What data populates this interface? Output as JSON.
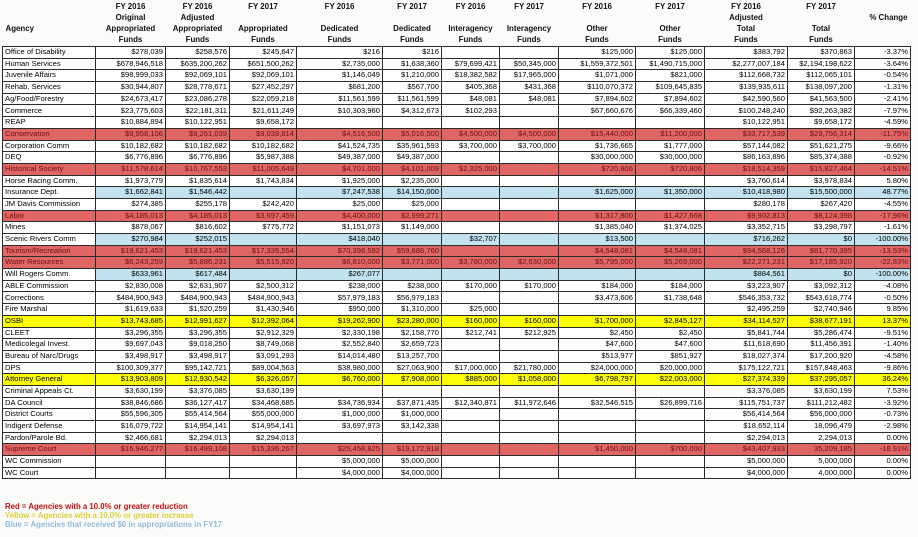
{
  "table": {
    "columns": [
      {
        "id": "agency",
        "lines": [
          "",
          "",
          "Agency",
          ""
        ]
      },
      {
        "id": "fy16-original-appropriated",
        "lines": [
          "FY 2016",
          "Original",
          "Appropriated",
          "Funds"
        ]
      },
      {
        "id": "fy16-adjusted-appropriated",
        "lines": [
          "FY 2016",
          "Adjusted",
          "Appropriated",
          "Funds"
        ]
      },
      {
        "id": "fy17-appropriated",
        "lines": [
          "FY 2017",
          "",
          "Appropriated",
          "Funds"
        ]
      },
      {
        "id": "fy16-dedicated",
        "lines": [
          "FY 2016",
          "",
          "Dedicated",
          "Funds"
        ]
      },
      {
        "id": "fy17-dedicated",
        "lines": [
          "FY 2017",
          "",
          "Dedicated",
          "Funds"
        ]
      },
      {
        "id": "fy16-interagency",
        "lines": [
          "FY 2016",
          "",
          "Interagency",
          "Funds"
        ]
      },
      {
        "id": "fy17-interagency",
        "lines": [
          "FY 2017",
          "",
          "Interagency",
          "Funds"
        ]
      },
      {
        "id": "fy16-other",
        "lines": [
          "FY 2016",
          "",
          "Other",
          "Funds"
        ]
      },
      {
        "id": "fy17-other",
        "lines": [
          "FY 2017",
          "",
          "Other",
          "Funds"
        ]
      },
      {
        "id": "fy16-adjusted-total",
        "lines": [
          "FY 2016",
          "Adjusted",
          "Total",
          "Funds"
        ]
      },
      {
        "id": "fy17-total",
        "lines": [
          "FY 2017",
          "",
          "Total",
          "Funds"
        ]
      },
      {
        "id": "percent-change",
        "lines": [
          "",
          "% Change",
          "",
          ""
        ]
      }
    ],
    "rows": [
      {
        "agency": "Office of Disability",
        "highlight": "none",
        "values": [
          "$278,039",
          "$258,576",
          "$245,647",
          "$216",
          "$216",
          "",
          "",
          "$125,000",
          "$125,000",
          "$383,792",
          "$370,863",
          "-3.37%"
        ]
      },
      {
        "agency": "Human Services",
        "highlight": "none",
        "values": [
          "$678,946,518",
          "$635,200,262",
          "$651,500,262",
          "$2,735,000",
          "$1,638,360",
          "$79,699,421",
          "$50,345,000",
          "$1,559,372,501",
          "$1,490,715,000",
          "$2,277,007,184",
          "$2,194,198,622",
          "-3.64%"
        ]
      },
      {
        "agency": "Juvenile Affairs",
        "highlight": "none",
        "values": [
          "$98,999,033",
          "$92,069,101",
          "$92,069,101",
          "$1,146,049",
          "$1,210,000",
          "$18,382,582",
          "$17,965,000",
          "$1,071,000",
          "$821,000",
          "$112,668,732",
          "$112,065,101",
          "-0.54%"
        ]
      },
      {
        "agency": "Rehab. Services",
        "highlight": "none",
        "values": [
          "$30,944,807",
          "$28,778,671",
          "$27,452,297",
          "$681,200",
          "$567,700",
          "$405,368",
          "$431,368",
          "$110,070,372",
          "$109,645,835",
          "$139,935,611",
          "$138,097,200",
          "-1.31%"
        ]
      },
      {
        "agency": "Ag/Food/Forestry",
        "highlight": "none",
        "values": [
          "$24,673,417",
          "$23,086,278",
          "$22,059,218",
          "$11,561,599",
          "$11,561,599",
          "$48,081",
          "$48,081",
          "$7,894,602",
          "$7,894,602",
          "$42,590,560",
          "$41,563,500",
          "-2.41%"
        ]
      },
      {
        "agency": "Commerce",
        "highlight": "none",
        "values": [
          "$23,775,603",
          "$22,181,311",
          "$21,611,249",
          "$10,303,960",
          "$4,312,673",
          "$102,293",
          "",
          "$67,660,676",
          "$66,339,460",
          "$100,248,240",
          "$92,263,382",
          "-7.97%"
        ]
      },
      {
        "agency": "REAP",
        "highlight": "none",
        "values": [
          "$10,884,894",
          "$10,122,951",
          "$9,658,172",
          "",
          "",
          "",
          "",
          "",
          "",
          "$10,122,951",
          "$9,658,172",
          "-4.59%"
        ]
      },
      {
        "agency": "Conservation",
        "highlight": "red",
        "values": [
          "$9,958,106",
          "$9,261,039",
          "$9,039,814",
          "$4,516,500",
          "$5,016,500",
          "$4,500,000",
          "$4,500,000",
          "$15,440,000",
          "$11,200,000",
          "$33,717,539",
          "$29,756,314",
          "-11.75%"
        ]
      },
      {
        "agency": "Corporation Comm",
        "highlight": "none",
        "values": [
          "$10,182,682",
          "$10,182,682",
          "$10,182,682",
          "$41,524,735",
          "$35,961,593",
          "$3,700,000",
          "$3,700,000",
          "$1,736,665",
          "$1,777,000",
          "$57,144,082",
          "$51,621,275",
          "-9.66%"
        ]
      },
      {
        "agency": "DEQ",
        "highlight": "none",
        "values": [
          "$6,776,896",
          "$6,776,896",
          "$5,987,388",
          "$49,387,000",
          "$49,387,000",
          "",
          "",
          "$30,000,000",
          "$30,000,000",
          "$86,163,896",
          "$85,374,388",
          "-0.92%"
        ]
      },
      {
        "agency": "Historical Society",
        "highlight": "red",
        "values": [
          "$11,578,614",
          "$10,767,553",
          "$11,005,649",
          "$4,701,000",
          "$4,101,009",
          "$2,325,000",
          "",
          "$720,806",
          "$720,806",
          "$18,514,359",
          "$15,827,464",
          "-14.51%"
        ]
      },
      {
        "agency": "Horse Racing Comm.",
        "highlight": "none",
        "values": [
          "$1,973,779",
          "$1,835,614",
          "$1,743,834",
          "$1,925,000",
          "$2,235,000",
          "",
          "",
          "",
          "",
          "$3,760,614",
          "$3,978,834",
          "5.80%"
        ]
      },
      {
        "agency": "Insurance Dept.",
        "highlight": "blue",
        "values": [
          "$1,662,841",
          "$1,546,442",
          "",
          "$7,247,538",
          "$14,150,000",
          "",
          "",
          "$1,625,000",
          "$1,350,000",
          "$10,418,980",
          "$15,500,000",
          "48.77%"
        ]
      },
      {
        "agency": "JM Davis Commission",
        "highlight": "none",
        "values": [
          "$274,385",
          "$255,178",
          "$242,420",
          "$25,000",
          "$25,000",
          "",
          "",
          "",
          "",
          "$280,178",
          "$267,420",
          "-4.55%"
        ]
      },
      {
        "agency": "Labor",
        "highlight": "red",
        "values": [
          "$4,185,013",
          "$4,185,013",
          "$3,697,459",
          "$4,400,000",
          "$2,999,271",
          "",
          "",
          "$1,317,800",
          "$1,427,668",
          "$9,902,813",
          "$8,124,398",
          "-17.96%"
        ]
      },
      {
        "agency": "Mines",
        "highlight": "none",
        "values": [
          "$878,067",
          "$816,602",
          "$775,772",
          "$1,151,073",
          "$1,149,000",
          "",
          "",
          "$1,385,040",
          "$1,374,025",
          "$3,352,715",
          "$3,298,797",
          "-1.61%"
        ]
      },
      {
        "agency": "Scenic Rivers Comm",
        "highlight": "blue",
        "values": [
          "$270,984",
          "$252,015",
          "",
          "$418,040",
          "",
          "$32,707",
          "",
          "$13,500",
          "",
          "$716,262",
          "$0",
          "-100.00%"
        ]
      },
      {
        "agency": "Tourism/Recreation",
        "highlight": "red",
        "values": [
          "$19,621,453",
          "$19,621,453",
          "$17,335,554",
          "$70,398,592",
          "$59,886,760",
          "",
          "",
          "$4,548,081",
          "$4,548,081",
          "$94,568,126",
          "$81,770,395",
          "-13.53%"
        ]
      },
      {
        "agency": "Water Resources",
        "highlight": "red",
        "values": [
          "$6,243,259",
          "$5,886,231",
          "$5,515,920",
          "$6,810,000",
          "$3,771,000",
          "$3,780,000",
          "$2,630,000",
          "$5,795,000",
          "$5,269,000",
          "$22,271,231",
          "$17,185,920",
          "-22.83%"
        ]
      },
      {
        "agency": "Will Rogers Comm.",
        "highlight": "blue",
        "values": [
          "$633,961",
          "$617,484",
          "",
          "$267,077",
          "",
          "",
          "",
          "",
          "",
          "$884,561",
          "$0",
          "-100.00%"
        ]
      },
      {
        "agency": "ABLE Commission",
        "highlight": "none",
        "values": [
          "$2,830,008",
          "$2,631,907",
          "$2,500,312",
          "$238,000",
          "$238,000",
          "$170,000",
          "$170,000",
          "$184,000",
          "$184,000",
          "$3,223,907",
          "$3,092,312",
          "-4.08%"
        ]
      },
      {
        "agency": "Corrections",
        "highlight": "none",
        "values": [
          "$484,900,943",
          "$484,900,943",
          "$484,900,943",
          "$57,979,183",
          "$56,979,183",
          "",
          "",
          "$3,473,606",
          "$1,738,648",
          "$546,353,732",
          "$543,618,774",
          "-0.50%"
        ]
      },
      {
        "agency": "Fire Marshal",
        "highlight": "none",
        "values": [
          "$1,619,633",
          "$1,520,259",
          "$1,430,946",
          "$950,000",
          "$1,310,000",
          "$25,000",
          "",
          "",
          "",
          "$2,495,259",
          "$2,740,946",
          "9.85%"
        ]
      },
      {
        "agency": "OSBI",
        "highlight": "yellow",
        "values": [
          "$13,743,685",
          "$12,991,627",
          "$12,392,064",
          "$19,262,900",
          "$23,280,000",
          "$160,000",
          "$160,000",
          "$1,700,000",
          "$2,845,127",
          "$34,114,527",
          "$38,677,191",
          "13.37%"
        ]
      },
      {
        "agency": "CLEET",
        "highlight": "none",
        "values": [
          "$3,296,355",
          "$3,296,355",
          "$2,912,329",
          "$2,330,198",
          "$2,158,770",
          "$212,741",
          "$212,925",
          "$2,450",
          "$2,450",
          "$5,841,744",
          "$5,286,474",
          "-9.51%"
        ]
      },
      {
        "agency": "Medicolegal Invest.",
        "highlight": "none",
        "values": [
          "$9,697,043",
          "$9,018,250",
          "$8,749,068",
          "$2,552,840",
          "$2,659,723",
          "",
          "",
          "$47,600",
          "$47,600",
          "$11,618,690",
          "$11,456,391",
          "-1.40%"
        ]
      },
      {
        "agency": "Bureau of Narc/Drugs",
        "highlight": "none",
        "values": [
          "$3,498,917",
          "$3,498,917",
          "$3,091,293",
          "$14,014,480",
          "$13,257,700",
          "",
          "",
          "$513,977",
          "$851,927",
          "$18,027,374",
          "$17,200,920",
          "-4.58%"
        ]
      },
      {
        "agency": "DPS",
        "highlight": "none",
        "values": [
          "$100,309,377",
          "$95,142,721",
          "$89,004,563",
          "$38,980,000",
          "$27,063,900",
          "$17,000,000",
          "$21,780,000",
          "$24,000,000",
          "$20,000,000",
          "$175,122,721",
          "$157,848,463",
          "-9.86%"
        ]
      },
      {
        "agency": "Attorney General",
        "highlight": "yellow",
        "values": [
          "$13,903,809",
          "$12,930,542",
          "$6,326,057",
          "$6,760,000",
          "$7,908,000",
          "$885,000",
          "$1,058,000",
          "$6,798,797",
          "$22,003,000",
          "$27,374,339",
          "$37,295,057",
          "36.24%"
        ]
      },
      {
        "agency": "Criminal Appeals Ct.",
        "highlight": "none",
        "values": [
          "$3,630,199",
          "$3,376,085",
          "$3,630,199",
          "",
          "",
          "",
          "",
          "",
          "",
          "$3,376,085",
          "$3,630,199",
          "7.53%"
        ]
      },
      {
        "agency": "DA Council",
        "highlight": "none",
        "values": [
          "$38,846,686",
          "$36,127,417",
          "$34,468,685",
          "$34,736,934",
          "$37,871,435",
          "$12,340,871",
          "$11,972,646",
          "$32,546,515",
          "$26,899,716",
          "$115,751,737",
          "$111,212,482",
          "-3.92%"
        ]
      },
      {
        "agency": "District Courts",
        "highlight": "none",
        "values": [
          "$55,596,305",
          "$55,414,564",
          "$55,000,000",
          "$1,000,000",
          "$1,000,000",
          "",
          "",
          "",
          "",
          "$56,414,564",
          "$56,000,000",
          "-0.73%"
        ]
      },
      {
        "agency": "Indigent Defense",
        "highlight": "none",
        "values": [
          "$16,079,722",
          "$14,954,141",
          "$14,954,141",
          "$3,697,973",
          "$3,142,338",
          "",
          "",
          "",
          "",
          "$18,652,114",
          "18,096,479",
          "-2.98%"
        ]
      },
      {
        "agency": "Pardon/Parole Bd.",
        "highlight": "none",
        "values": [
          "$2,466,681",
          "$2,294,013",
          "$2,294,013",
          "",
          "",
          "",
          "",
          "",
          "",
          "$2,294,013",
          "2,294,013",
          "0.00%"
        ]
      },
      {
        "agency": "Supreme Court",
        "highlight": "red",
        "values": [
          "$16,946,277",
          "$16,499,108",
          "$15,336,267",
          "$25,458,825",
          "$19,172,918",
          "",
          "",
          "$1,450,000",
          "$700,000",
          "$43,407,933",
          "35,209,185",
          "-18.91%"
        ]
      },
      {
        "agency": "WC Commission",
        "highlight": "none",
        "values": [
          "",
          "",
          "",
          "$5,000,000",
          "$5,000,000",
          "",
          "",
          "",
          "",
          "$5,000,000",
          "5,000,000",
          "0.00%"
        ]
      },
      {
        "agency": "WC Court",
        "highlight": "none",
        "values": [
          "",
          "",
          "",
          "$4,000,000",
          "$4,000,000",
          "",
          "",
          "",
          "",
          "$4,000,000",
          "4,000,000",
          "0.00%"
        ]
      }
    ]
  },
  "legend": [
    {
      "text": "Red = Agencies with a 10.0% or greater reduction",
      "color": "#c01010"
    },
    {
      "text": "Yellow = Agencies with a 10.0% or greater increase",
      "color": "#ddcf3a"
    },
    {
      "text": "Blue = Agencies that received $0 in appropriations in FY17",
      "color": "#8fbcd9"
    }
  ],
  "colors": {
    "red_row_bg": "#e06565",
    "red_row_text": "#6d1111",
    "yellow_row_bg": "#fdfd05",
    "blue_row_bg": "#c2e2ef",
    "grid": "#2b2b2b"
  }
}
